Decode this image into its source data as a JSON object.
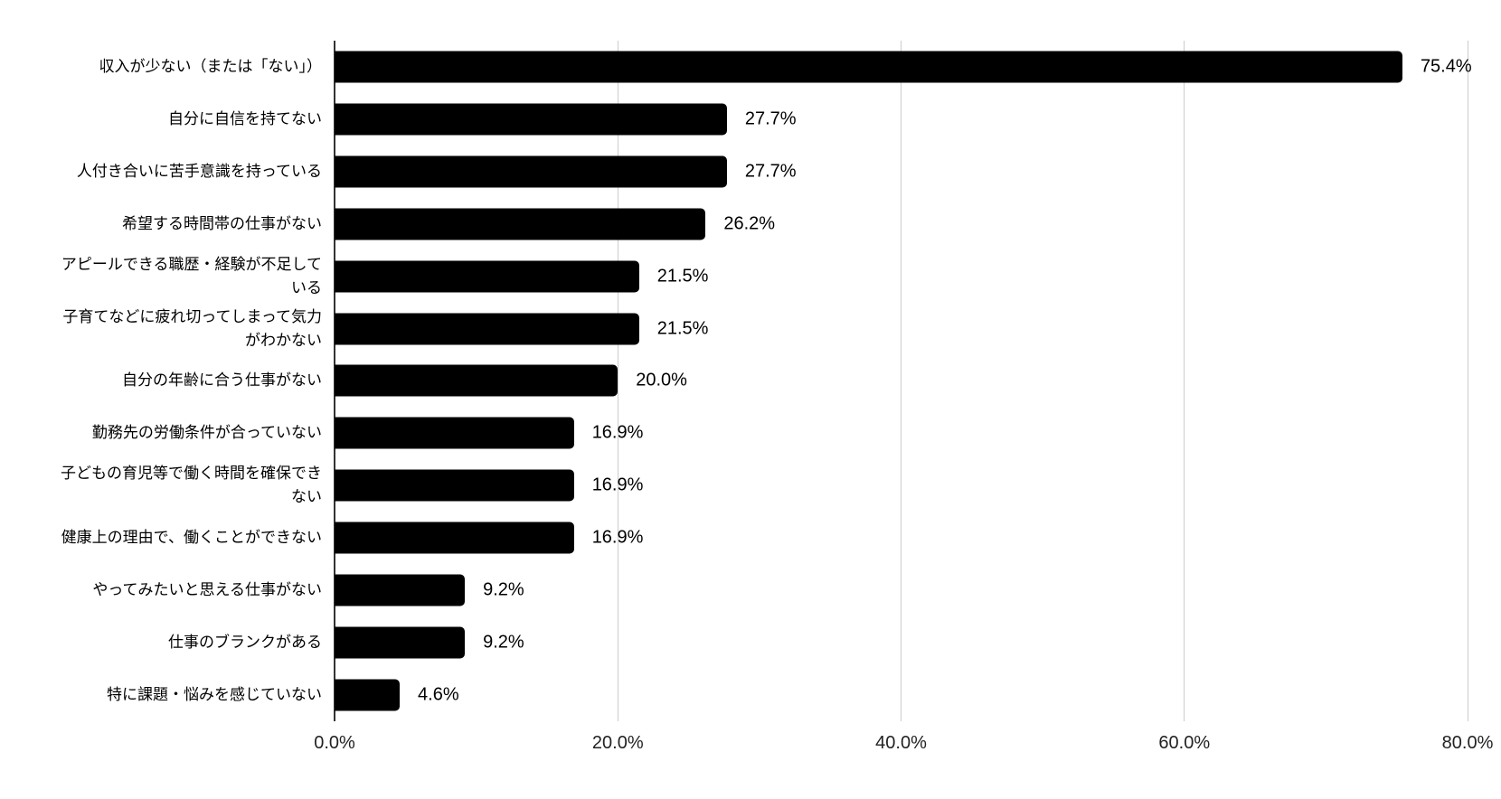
{
  "chart_data": {
    "type": "bar",
    "orientation": "horizontal",
    "categories": [
      "収入が少ない（または「ない」）",
      "自分に自信を持てない",
      "人付き合いに苦手意識を持っている",
      "希望する時間帯の仕事がない",
      "アピールできる職歴・経験が不足している",
      "子育てなどに疲れ切ってしまって気力がわかない",
      "自分の年齢に合う仕事がない",
      "勤務先の労働条件が合っていない",
      "子どもの育児等で働く時間を確保できない",
      "健康上の理由で、働くことができない",
      "やってみたいと思える仕事がない",
      "仕事のブランクがある",
      "特に課題・悩みを感じていない"
    ],
    "values": [
      75.4,
      27.7,
      27.7,
      26.2,
      21.5,
      21.5,
      20.0,
      16.9,
      16.9,
      16.9,
      9.2,
      9.2,
      4.6
    ],
    "value_labels": [
      "75.4%",
      "27.7%",
      "27.7%",
      "26.2%",
      "21.5%",
      "21.5%",
      "20.0%",
      "16.9%",
      "16.9%",
      "16.9%",
      "9.2%",
      "9.2%",
      "4.6%"
    ],
    "xlim": [
      0,
      80
    ],
    "x_ticks": [
      "0.0%",
      "20.0%",
      "40.0%",
      "60.0%",
      "80.0%"
    ],
    "x_tick_values": [
      0,
      20,
      40,
      60,
      80
    ],
    "grid": true,
    "legend": false,
    "colors": {
      "bar": "#000000",
      "gridline": "#cccccc",
      "axis_line": "#333333",
      "label_text": "#000000",
      "value_text": "#000000",
      "tick_text": "#222222",
      "background": "#ffffff"
    }
  }
}
